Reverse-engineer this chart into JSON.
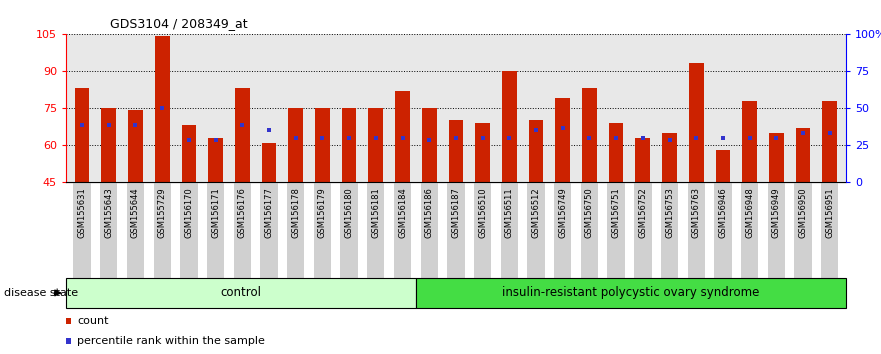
{
  "title": "GDS3104 / 208349_at",
  "samples": [
    "GSM155631",
    "GSM155643",
    "GSM155644",
    "GSM155729",
    "GSM156170",
    "GSM156171",
    "GSM156176",
    "GSM156177",
    "GSM156178",
    "GSM156179",
    "GSM156180",
    "GSM156181",
    "GSM156184",
    "GSM156186",
    "GSM156187",
    "GSM156510",
    "GSM156511",
    "GSM156512",
    "GSM156749",
    "GSM156750",
    "GSM156751",
    "GSM156752",
    "GSM156753",
    "GSM156763",
    "GSM156946",
    "GSM156948",
    "GSM156949",
    "GSM156950",
    "GSM156951"
  ],
  "bar_heights": [
    83,
    75,
    74,
    104,
    68,
    63,
    83,
    61,
    75,
    75,
    75,
    75,
    82,
    75,
    70,
    69,
    90,
    70,
    79,
    83,
    69,
    63,
    65,
    93,
    58,
    78,
    65,
    67,
    78
  ],
  "blue_dot_values": [
    68,
    68,
    68,
    75,
    62,
    62,
    68,
    66,
    63,
    63,
    63,
    63,
    63,
    62,
    63,
    63,
    63,
    66,
    67,
    63,
    63,
    63,
    62,
    63,
    63,
    63,
    63,
    65,
    65
  ],
  "control_count": 13,
  "disease_count": 16,
  "ylim_left": [
    45,
    105
  ],
  "ylim_right": [
    0,
    100
  ],
  "yticks_left": [
    45,
    60,
    75,
    90,
    105
  ],
  "yticks_right": [
    0,
    25,
    50,
    75,
    100
  ],
  "ytick_labels_left": [
    "45",
    "60",
    "75",
    "90",
    "105"
  ],
  "ytick_labels_right": [
    "0",
    "25",
    "50",
    "75",
    "100%"
  ],
  "bar_color": "#CC2200",
  "dot_color": "#3333CC",
  "bg_color": "#E8E8E8",
  "tick_bg": "#D0D0D0",
  "control_label": "control",
  "disease_label": "insulin-resistant polycystic ovary syndrome",
  "disease_state_label": "disease state",
  "legend_count": "count",
  "legend_pct": "percentile rank within the sample",
  "control_bg": "#CCFFCC",
  "disease_bg": "#44DD44",
  "bar_width": 0.55
}
